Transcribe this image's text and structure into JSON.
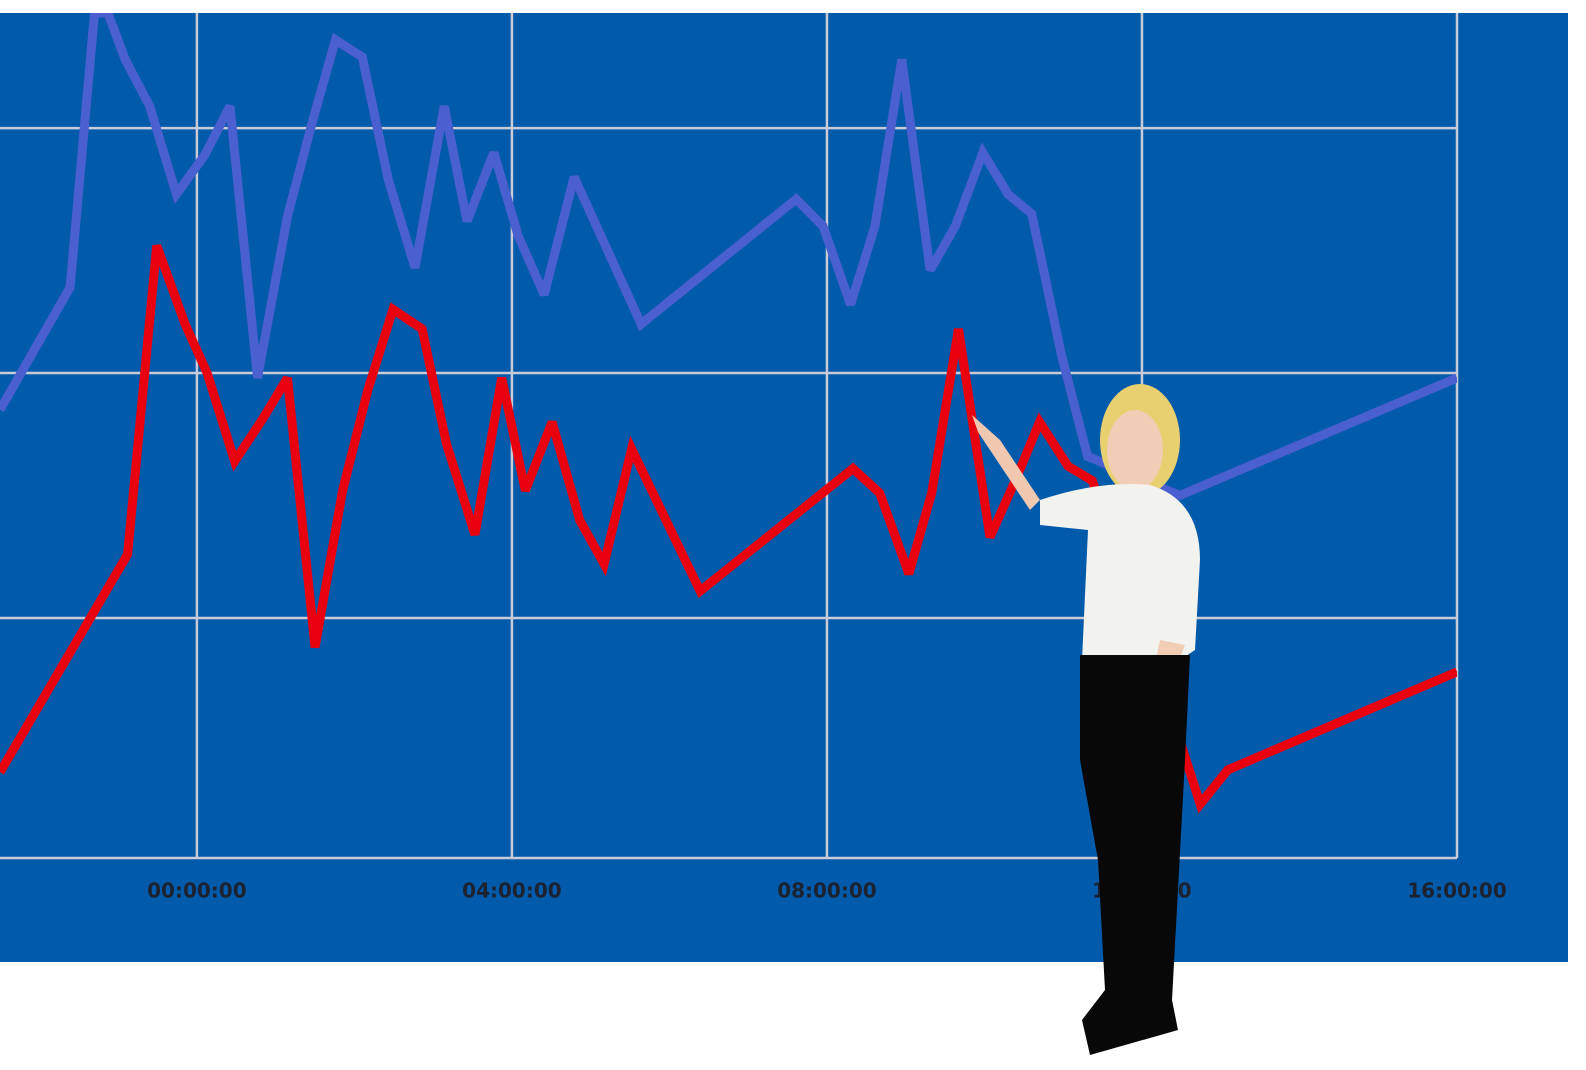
{
  "chart_data": {
    "type": "line",
    "xlim": [
      -2.5,
      16
    ],
    "ylim": [
      0,
      3.45
    ],
    "xticks": [
      {
        "value": 0,
        "label": "00:00:00"
      },
      {
        "value": 4,
        "label": "04:00:00"
      },
      {
        "value": 8,
        "label": "08:00:00"
      },
      {
        "value": 12,
        "label": "12:00:00"
      },
      {
        "value": 16,
        "label": "16:00:00"
      }
    ],
    "yticks": [
      0,
      0.98,
      1.98,
      2.98
    ],
    "grid": true,
    "series": [
      {
        "color": "#4a5fd0",
        "x": [
          -2.5,
          -1.61,
          -1.3,
          -1.13,
          -0.91,
          -0.6,
          -0.26,
          0.1,
          0.42,
          0.77,
          1.15,
          1.47,
          1.76,
          2.1,
          2.43,
          2.77,
          3.14,
          3.43,
          3.77,
          4.08,
          4.41,
          4.79,
          5.64,
          7.61,
          7.95,
          8.3,
          8.61,
          8.95,
          9.31,
          9.63,
          9.98,
          10.3,
          10.6,
          10.98,
          11.31,
          12.48,
          16
        ],
        "values": [
          1.83,
          2.33,
          3.45,
          3.45,
          3.26,
          3.07,
          2.71,
          2.87,
          3.07,
          1.96,
          2.62,
          3.01,
          3.34,
          3.27,
          2.77,
          2.41,
          3.07,
          2.6,
          2.88,
          2.54,
          2.3,
          2.78,
          2.18,
          2.69,
          2.58,
          2.26,
          2.58,
          3.26,
          2.4,
          2.58,
          2.88,
          2.71,
          2.63,
          2.05,
          1.64,
          1.48,
          1.96
        ]
      },
      {
        "color": "#e8000f",
        "x": [
          -2.5,
          -0.88,
          -0.51,
          -0.15,
          0.13,
          0.48,
          0.83,
          1.15,
          1.5,
          1.85,
          2.17,
          2.49,
          2.86,
          3.17,
          3.53,
          3.87,
          4.17,
          4.51,
          4.86,
          5.17,
          5.52,
          6.39,
          8.33,
          8.67,
          9.04,
          9.33,
          9.67,
          10.07,
          10.39,
          10.7,
          11.06,
          11.37,
          12.48,
          12.74,
          13.09,
          16
        ],
        "values": [
          0.35,
          1.24,
          2.5,
          2.18,
          1.98,
          1.62,
          1.79,
          1.96,
          0.86,
          1.5,
          1.91,
          2.24,
          2.16,
          1.69,
          1.32,
          1.96,
          1.5,
          1.78,
          1.38,
          1.2,
          1.67,
          1.09,
          1.59,
          1.49,
          1.16,
          1.49,
          2.16,
          1.31,
          1.54,
          1.78,
          1.6,
          1.54,
          0.48,
          0.22,
          0.36,
          0.76
        ]
      }
    ]
  }
}
